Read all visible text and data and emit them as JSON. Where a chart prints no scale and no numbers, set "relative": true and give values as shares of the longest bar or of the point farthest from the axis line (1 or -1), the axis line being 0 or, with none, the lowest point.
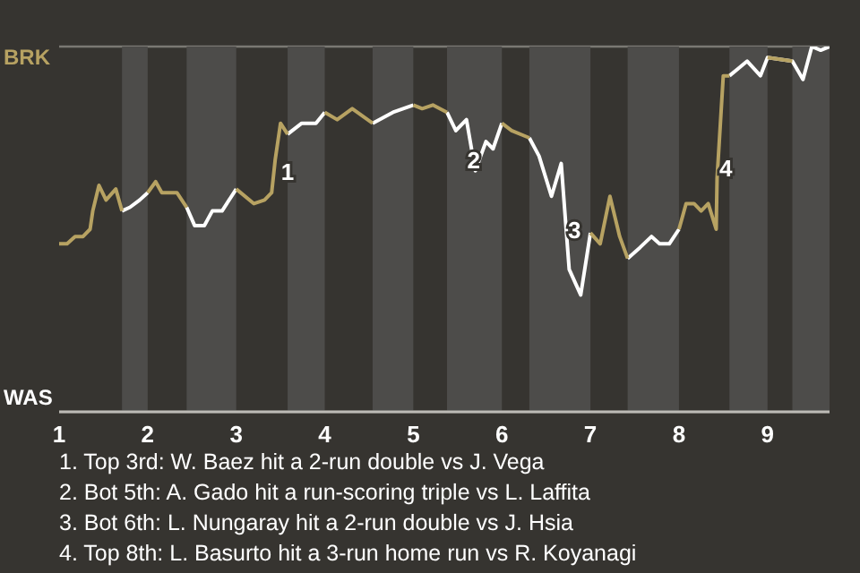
{
  "chart_data": {
    "type": "line",
    "relative": true,
    "x": [
      1,
      1.09,
      1.18,
      1.27,
      1.35,
      1.38,
      1.45,
      1.53,
      1.64,
      1.71,
      1.8,
      1.91,
      2,
      2.09,
      2.16,
      2.33,
      2.44,
      2.53,
      2.64,
      2.73,
      2.84,
      3,
      3.2,
      3.32,
      3.4,
      3.44,
      3.5,
      3.58,
      3.74,
      3.9,
      4,
      4.14,
      4.31,
      4.54,
      4.77,
      5,
      5.1,
      5.22,
      5.38,
      5.48,
      5.6,
      5.7,
      5.82,
      5.9,
      6,
      6.11,
      6.31,
      6.42,
      6.56,
      6.67,
      6.71,
      6.76,
      6.89,
      7,
      7.11,
      7.22,
      7.33,
      7.42,
      7.56,
      7.69,
      7.78,
      7.89,
      8,
      8.08,
      8.17,
      8.25,
      8.33,
      8.42,
      8.43,
      8.5,
      8.57,
      8.67,
      8.77,
      8.92,
      9,
      9.28,
      9.4,
      9.5,
      9.6,
      9.7
    ],
    "series": [
      {
        "color": "#ffffff",
        "values": [
          null,
          null,
          null,
          null,
          null,
          null,
          null,
          null,
          null,
          0.55,
          0.56,
          0.58,
          0.6,
          null,
          null,
          null,
          0.56,
          0.51,
          0.51,
          0.55,
          0.55,
          0.61,
          null,
          null,
          null,
          null,
          null,
          0.76,
          0.79,
          0.79,
          0.82,
          null,
          null,
          0.79,
          0.82,
          0.84,
          null,
          null,
          0.82,
          0.77,
          0.8,
          0.66,
          0.74,
          0.72,
          0.79,
          null,
          0.75,
          0.7,
          0.59,
          0.68,
          0.55,
          0.39,
          0.32,
          0.49,
          null,
          null,
          null,
          0.42,
          0.45,
          0.48,
          0.46,
          0.46,
          0.5,
          null,
          null,
          null,
          null,
          null,
          null,
          null,
          0.92,
          0.94,
          0.96,
          0.92,
          0.97,
          0.96,
          0.91,
          1.0,
          0.99,
          1.0
        ]
      },
      {
        "color": "#b7a262",
        "values": [
          0.46,
          0.46,
          0.48,
          0.48,
          0.5,
          0.55,
          0.62,
          0.58,
          0.61,
          0.55,
          null,
          null,
          0.6,
          0.63,
          0.6,
          0.6,
          0.56,
          null,
          null,
          null,
          null,
          0.61,
          0.57,
          0.58,
          0.6,
          0.69,
          0.79,
          0.76,
          null,
          null,
          0.82,
          0.8,
          0.83,
          0.79,
          null,
          0.84,
          0.83,
          0.84,
          0.82,
          null,
          null,
          null,
          null,
          null,
          0.79,
          0.77,
          0.75,
          null,
          null,
          null,
          null,
          null,
          null,
          0.49,
          0.46,
          0.59,
          0.48,
          0.42,
          null,
          null,
          null,
          null,
          0.5,
          0.57,
          0.57,
          0.55,
          0.57,
          0.5,
          0.64,
          0.92,
          0.92,
          null,
          null,
          null,
          0.97,
          0.96,
          null,
          null,
          null,
          null
        ]
      }
    ],
    "xlim": [
      1,
      9.7
    ],
    "xticks": [
      1,
      2,
      3,
      4,
      5,
      6,
      7,
      8,
      9
    ],
    "grid": "y",
    "marker": "none",
    "line_style": "solid",
    "bands": [
      {
        "axis": "x",
        "from": 1.71,
        "to": 2,
        "color": "#4d4c4a"
      },
      {
        "axis": "x",
        "from": 2.44,
        "to": 3,
        "color": "#4d4c4a"
      },
      {
        "axis": "x",
        "from": 3.58,
        "to": 4,
        "color": "#4d4c4a"
      },
      {
        "axis": "x",
        "from": 4.54,
        "to": 5,
        "color": "#4d4c4a"
      },
      {
        "axis": "x",
        "from": 5.38,
        "to": 6,
        "color": "#4d4c4a"
      },
      {
        "axis": "x",
        "from": 6.31,
        "to": 7,
        "color": "#4d4c4a"
      },
      {
        "axis": "x",
        "from": 7.42,
        "to": 8,
        "color": "#4d4c4a"
      },
      {
        "axis": "x",
        "from": 8.57,
        "to": 9,
        "color": "#4d4c4a"
      },
      {
        "axis": "x",
        "from": 9.28,
        "to": 9.7,
        "color": "#4d4c4a"
      }
    ],
    "annotations": [
      "BRK",
      "WAS",
      {
        "text": "1",
        "x": 3.58,
        "y": 0.66
      },
      {
        "text": "2",
        "x": 5.68,
        "y": 0.69
      },
      {
        "text": "3",
        "x": 6.82,
        "y": 0.5
      },
      {
        "text": "4",
        "x": 8.53,
        "y": 0.67
      },
      "1. Top 3rd: W. Baez hit a 2-run double vs J. Vega",
      "2. Bot 5th: A. Gado hit a run-scoring triple vs L. Laffita",
      "3. Bot 6th: L. Nungaray hit a 2-run double vs J. Hsia",
      "4. Top 8th: L. Basurto hit a 3-run home run vs R. Koyanagi"
    ]
  }
}
